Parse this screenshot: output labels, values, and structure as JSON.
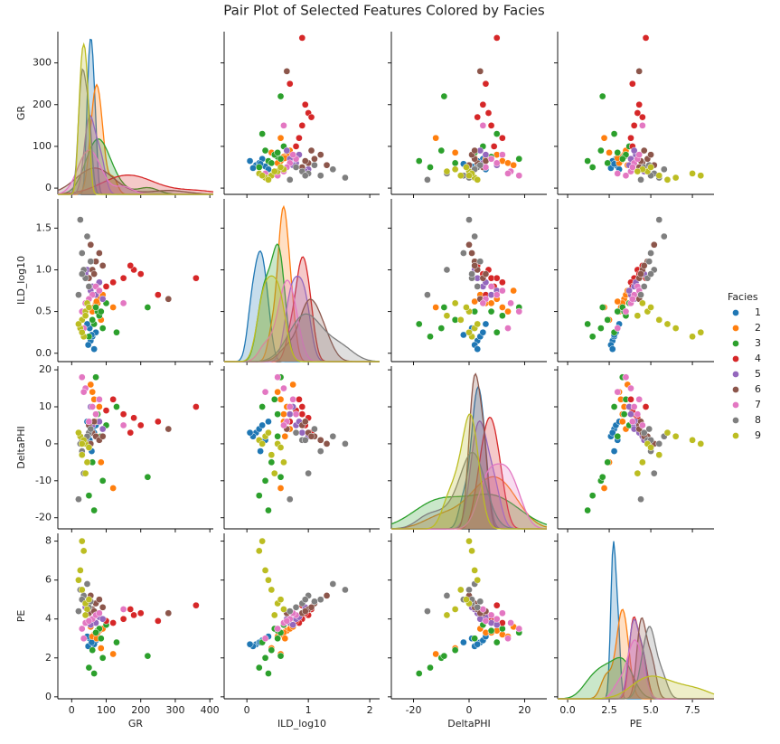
{
  "chart_data": {
    "type": "pair",
    "title": "Pair Plot of Selected Features Colored by Facies",
    "features": [
      "GR",
      "ILD_log10",
      "DeltaPHI",
      "PE"
    ],
    "xlims": [
      [
        -40,
        410
      ],
      [
        -0.37,
        2.16
      ],
      [
        -28,
        28
      ],
      [
        -0.6,
        8.8
      ]
    ],
    "xticks": [
      [
        0,
        100,
        200,
        300,
        400
      ],
      [
        0,
        1,
        2
      ],
      [
        -20,
        0,
        20
      ],
      [
        {
          "value": 0,
          "label": "0.0"
        },
        2.5,
        {
          "value": 5,
          "label": "5.0"
        },
        7.5
      ]
    ],
    "ylims": [
      [
        -15,
        375
      ],
      [
        -0.1,
        1.85
      ],
      [
        -23,
        21
      ],
      [
        -0.1,
        8.4
      ]
    ],
    "yticks": [
      [
        0,
        100,
        200,
        300
      ],
      [
        {
          "value": 0,
          "label": "0.0"
        },
        {
          "value": 0.5,
          "label": "0.5"
        },
        {
          "value": 1,
          "label": "1.0"
        },
        {
          "value": 1.5,
          "label": "1.5"
        }
      ],
      [
        -20,
        -10,
        0,
        10,
        20
      ],
      [
        0,
        2,
        4,
        6,
        8
      ]
    ],
    "legend_title": "Facies",
    "legend": "right",
    "series": [
      {
        "name": "1",
        "color": "#1f77b4",
        "values": [
          [
            55,
            0.15,
            3,
            2.7
          ],
          [
            60,
            0.2,
            4,
            2.8
          ],
          [
            48,
            0.1,
            2,
            2.6
          ],
          [
            70,
            0.25,
            5,
            2.9
          ],
          [
            52,
            0.3,
            1,
            3.0
          ],
          [
            65,
            0.05,
            3,
            2.7
          ],
          [
            58,
            0.22,
            -2,
            2.8
          ],
          [
            45,
            0.35,
            6,
            3.1
          ]
        ]
      },
      {
        "name": "2",
        "color": "#ff7f0e",
        "values": [
          [
            70,
            0.6,
            6,
            3.3
          ],
          [
            80,
            0.65,
            10,
            3.4
          ],
          [
            65,
            0.55,
            12,
            3.2
          ],
          [
            90,
            0.7,
            4,
            3.5
          ],
          [
            60,
            0.5,
            14,
            3.1
          ],
          [
            75,
            0.6,
            8,
            3.3
          ],
          [
            85,
            0.4,
            -5,
            2.5
          ],
          [
            120,
            0.55,
            -12,
            2.2
          ],
          [
            55,
            0.75,
            16,
            3.6
          ],
          [
            72,
            0.62,
            2,
            3.0
          ]
        ]
      },
      {
        "name": "3",
        "color": "#2ca02c",
        "values": [
          [
            75,
            0.5,
            8,
            3.4
          ],
          [
            80,
            0.45,
            12,
            3.5
          ],
          [
            90,
            0.3,
            -10,
            2.0
          ],
          [
            70,
            0.55,
            18,
            3.3
          ],
          [
            65,
            0.35,
            -18,
            1.2
          ],
          [
            100,
            0.6,
            5,
            3.7
          ],
          [
            60,
            0.4,
            -5,
            2.4
          ],
          [
            130,
            0.25,
            10,
            2.8
          ],
          [
            220,
            0.55,
            -9,
            2.1
          ],
          [
            85,
            0.5,
            2,
            3.0
          ],
          [
            50,
            0.2,
            -14,
            1.5
          ]
        ]
      },
      {
        "name": "4",
        "color": "#d62728",
        "values": [
          [
            150,
            0.9,
            8,
            4.0
          ],
          [
            180,
            1.0,
            7,
            4.2
          ],
          [
            360,
            0.9,
            10,
            4.7
          ],
          [
            120,
            0.85,
            12,
            3.8
          ],
          [
            200,
            0.95,
            5,
            4.3
          ],
          [
            100,
            0.8,
            9,
            3.9
          ],
          [
            250,
            0.7,
            6,
            3.9
          ],
          [
            170,
            1.05,
            3,
            4.5
          ]
        ]
      },
      {
        "name": "5",
        "color": "#9467bd",
        "values": [
          [
            60,
            0.8,
            5,
            4.0
          ],
          [
            50,
            0.9,
            3,
            4.3
          ],
          [
            70,
            0.7,
            8,
            3.8
          ],
          [
            45,
            1.0,
            2,
            4.5
          ],
          [
            80,
            0.85,
            6,
            4.1
          ],
          [
            55,
            0.75,
            10,
            3.7
          ],
          [
            90,
            0.65,
            4,
            4.0
          ],
          [
            40,
            0.95,
            1,
            4.6
          ]
        ]
      },
      {
        "name": "6",
        "color": "#8c564b",
        "values": [
          [
            60,
            1.0,
            3,
            4.5
          ],
          [
            70,
            1.1,
            2,
            4.8
          ],
          [
            50,
            0.9,
            5,
            4.3
          ],
          [
            80,
            1.2,
            1,
            5.0
          ],
          [
            280,
            0.65,
            4,
            4.3
          ],
          [
            55,
            1.3,
            0,
            5.2
          ],
          [
            65,
            0.95,
            6,
            4.4
          ],
          [
            90,
            1.05,
            2,
            4.6
          ]
        ]
      },
      {
        "name": "7",
        "color": "#e377c2",
        "values": [
          [
            60,
            0.7,
            10,
            4.0
          ],
          [
            40,
            0.6,
            15,
            3.8
          ],
          [
            70,
            0.8,
            8,
            4.2
          ],
          [
            30,
            0.5,
            18,
            3.5
          ],
          [
            80,
            0.75,
            12,
            4.3
          ],
          [
            50,
            0.65,
            6,
            3.9
          ],
          [
            150,
            0.6,
            5,
            4.5
          ],
          [
            35,
            0.3,
            14,
            3.0
          ]
        ]
      },
      {
        "name": "8",
        "color": "#7f7f7f",
        "values": [
          [
            40,
            0.9,
            1,
            4.8
          ],
          [
            30,
            1.2,
            -2,
            5.0
          ],
          [
            25,
            1.6,
            0,
            5.5
          ],
          [
            50,
            0.8,
            3,
            4.6
          ],
          [
            35,
            1.0,
            -8,
            5.2
          ],
          [
            45,
            1.4,
            2,
            5.8
          ],
          [
            20,
            0.7,
            -15,
            4.4
          ],
          [
            55,
            1.1,
            4,
            4.9
          ],
          [
            30,
            0.95,
            1,
            5.0
          ]
        ]
      },
      {
        "name": "9",
        "color": "#bcbd22",
        "values": [
          [
            40,
            0.5,
            0,
            4.8
          ],
          [
            30,
            0.4,
            -3,
            5.5
          ],
          [
            25,
            0.3,
            2,
            6.5
          ],
          [
            45,
            0.6,
            -5,
            4.5
          ],
          [
            35,
            0.2,
            1,
            7.5
          ],
          [
            50,
            0.55,
            -1,
            5.0
          ],
          [
            20,
            0.35,
            3,
            6.0
          ],
          [
            40,
            0.45,
            -8,
            4.2
          ],
          [
            30,
            0.25,
            0,
            8.0
          ]
        ]
      }
    ]
  }
}
